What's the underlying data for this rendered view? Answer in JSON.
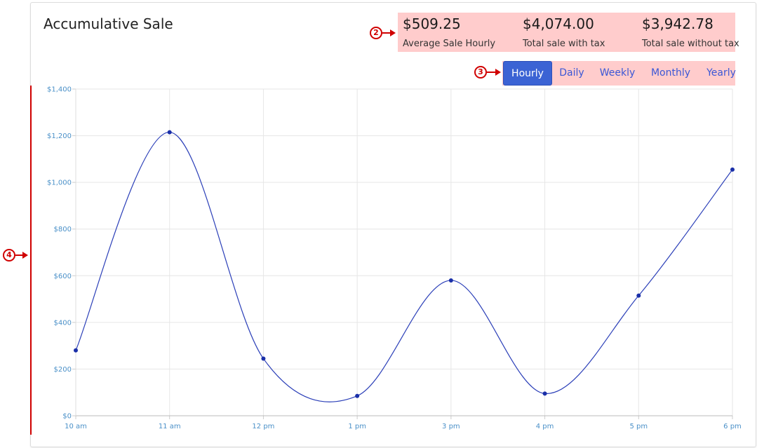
{
  "header": {
    "title": "Accumulative Sale"
  },
  "stats": [
    {
      "value": "$509.25",
      "label": "Average Sale Hourly"
    },
    {
      "value": "$4,074.00",
      "label": "Total sale with tax"
    },
    {
      "value": "$3,942.78",
      "label": "Total sale without tax"
    }
  ],
  "tabs": [
    {
      "label": "Hourly",
      "active": true
    },
    {
      "label": "Daily",
      "active": false
    },
    {
      "label": "Weekly",
      "active": false
    },
    {
      "label": "Monthly",
      "active": false
    },
    {
      "label": "Yearly",
      "active": false
    }
  ],
  "callouts": {
    "c2": "2",
    "c3": "3",
    "c4": "4"
  },
  "colors": {
    "line": "#2b3fb8",
    "point": "#1a2fa8",
    "grid": "#e6e6e6",
    "tick_label": "#4a90c8",
    "highlight": "#ffcccc",
    "active_tab": "#3b63d4",
    "callout": "#d00000"
  },
  "chart_data": {
    "type": "line",
    "categories": [
      "10 am",
      "11 am",
      "12 pm",
      "1 pm",
      "3 pm",
      "4 pm",
      "5 pm",
      "6 pm"
    ],
    "series": [
      {
        "values": [
          280,
          1215,
          245,
          85,
          580,
          95,
          515,
          1055
        ]
      }
    ],
    "ylim": [
      0,
      1400
    ],
    "yticks": [
      0,
      200,
      400,
      600,
      800,
      1000,
      1200,
      1400
    ],
    "ytick_labels": [
      "$0",
      "$200",
      "$400",
      "$600",
      "$800",
      "$1,000",
      "$1,200",
      "$1,400"
    ],
    "grid": true,
    "smooth": true
  }
}
